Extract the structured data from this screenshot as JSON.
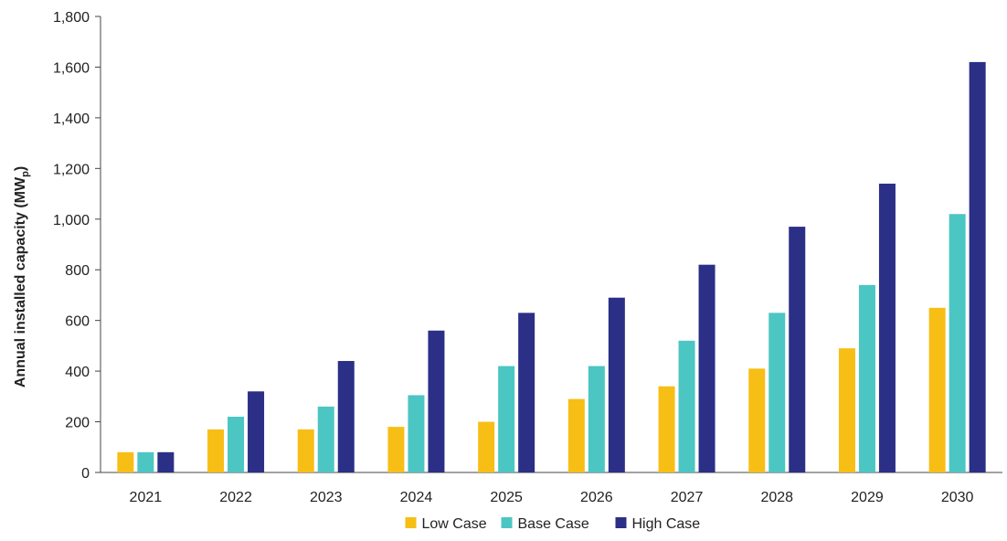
{
  "chart_data": {
    "type": "bar",
    "categories": [
      "2021",
      "2022",
      "2023",
      "2024",
      "2025",
      "2026",
      "2027",
      "2028",
      "2029",
      "2030"
    ],
    "series": [
      {
        "name": "Low Case",
        "color": "#F7BE16",
        "values": [
          80,
          170,
          170,
          180,
          200,
          290,
          340,
          410,
          490,
          650
        ]
      },
      {
        "name": "Base Case",
        "color": "#4CC6C3",
        "values": [
          80,
          220,
          260,
          305,
          420,
          420,
          520,
          630,
          740,
          1020
        ]
      },
      {
        "name": "High Case",
        "color": "#2B2F86",
        "values": [
          80,
          320,
          440,
          560,
          630,
          690,
          820,
          970,
          1140,
          1620
        ]
      }
    ],
    "ylabel": "Annual installed capacity (MW",
    "ylabel_subscript": "p",
    "ylabel_close": ")",
    "ylim": [
      0,
      1800
    ],
    "yticks": [
      "0",
      "200",
      "400",
      "600",
      "800",
      "1,000",
      "1,200",
      "1,400",
      "1,600",
      "1,800"
    ],
    "ytick_values": [
      0,
      200,
      400,
      600,
      800,
      1000,
      1200,
      1400,
      1600,
      1800
    ],
    "grid": false,
    "legend_position": "bottom-center"
  }
}
